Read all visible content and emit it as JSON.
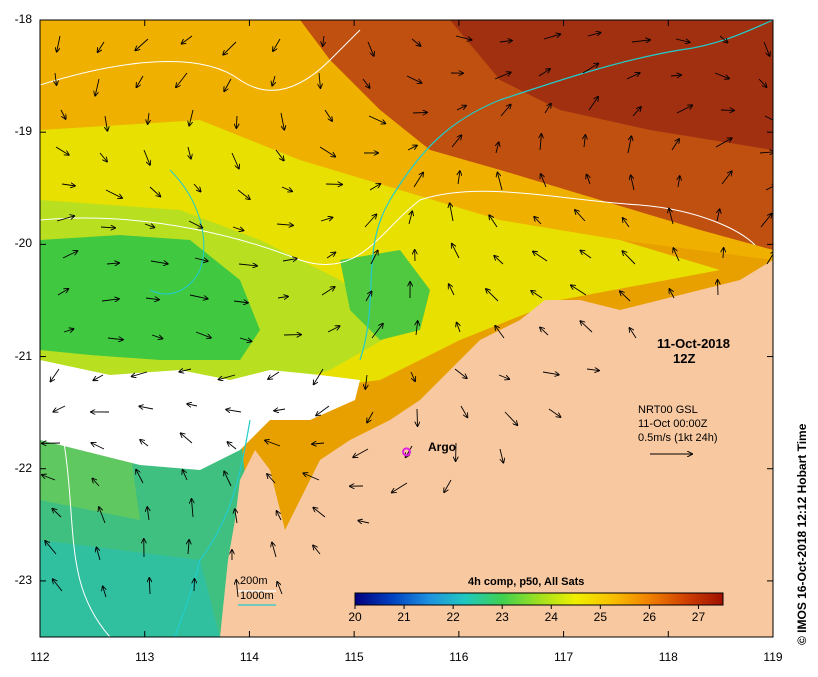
{
  "map": {
    "date": "11-Oct-2018",
    "time": "12Z",
    "lat_ticks": [
      "-18",
      "-19",
      "-20",
      "-21",
      "-22",
      "-23"
    ],
    "lon_ticks": [
      "112",
      "113",
      "114",
      "115",
      "116",
      "117",
      "118",
      "119"
    ],
    "lat_range": [
      -23.5,
      -18
    ],
    "lon_range": [
      112,
      119
    ]
  },
  "current_legend": {
    "source": "NRT00 GSL",
    "datetime": "11-Oct 00:00Z",
    "scale": "0.5m/s (1kt 24h)"
  },
  "isobath_legend": {
    "shallow": "200m",
    "deep": "1000m",
    "shallow_color": "#ffffff",
    "deep_color": "#22cccc"
  },
  "colorbar": {
    "title": "4h comp, p50, All Sats",
    "ticks": [
      "20",
      "21",
      "22",
      "23",
      "24",
      "25",
      "26",
      "27"
    ],
    "range": [
      20,
      27.5
    ],
    "colors": [
      "#000080",
      "#0040c0",
      "#1e90e0",
      "#20c8c0",
      "#40d050",
      "#a0e020",
      "#f0f000",
      "#f8c000",
      "#f08000",
      "#d04000",
      "#a01000"
    ]
  },
  "marker": {
    "label": "Argo",
    "lon": 115.5,
    "lat": -21.85,
    "color": "#e020e0"
  },
  "credit": "© IMOS 16-Oct-2018 12:12 Hobart Time",
  "colors": {
    "land": "#f8c8a0",
    "cloud": "#ffffff"
  }
}
